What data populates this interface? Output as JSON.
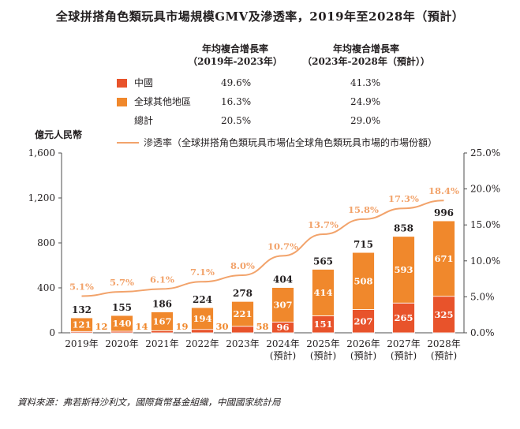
{
  "chart_data": {
    "type": "bar",
    "title": "全球拼搭角色類玩具市場規模GMV及滲透率，2019年至2028年（預計）",
    "ylabel": "億元人民幣",
    "ylim": [
      0,
      1600
    ],
    "yticks": [
      "0",
      "400",
      "800",
      "1,200",
      "1,600"
    ],
    "ytick_values": [
      0,
      400,
      800,
      1200,
      1600
    ],
    "y2lim": [
      0,
      25
    ],
    "y2ticks": [
      "0.0%",
      "5.0%",
      "10.0%",
      "15.0%",
      "20.0%",
      "25.0%"
    ],
    "y2tick_values": [
      0,
      5,
      10,
      15,
      20,
      25
    ],
    "categories": [
      "2019年",
      "2020年",
      "2021年",
      "2022年",
      "2023年",
      "2024年",
      "2025年",
      "2026年",
      "2027年",
      "2028年"
    ],
    "category_sub": [
      "",
      "",
      "",
      "",
      "",
      "(預計)",
      "(預計)",
      "(預計)",
      "(預計)",
      "(預計)"
    ],
    "series": [
      {
        "name": "中國",
        "color": "#e8532b",
        "values": [
          12,
          14,
          19,
          30,
          58,
          96,
          151,
          207,
          265,
          325
        ]
      },
      {
        "name": "全球其他地區",
        "color": "#f0882c",
        "values": [
          121,
          140,
          167,
          194,
          221,
          307,
          414,
          508,
          593,
          671
        ]
      }
    ],
    "totals": [
      132,
      155,
      186,
      224,
      278,
      404,
      565,
      715,
      858,
      996
    ],
    "line": {
      "name": "滲透率（全球拼搭角色類玩具市場佔全球角色類玩具市場的市場份額）",
      "color": "#f2a36b",
      "values": [
        5.1,
        5.7,
        6.1,
        7.1,
        8.0,
        10.7,
        13.7,
        15.8,
        17.3,
        18.4
      ],
      "labels": [
        "5.1%",
        "5.7%",
        "6.1%",
        "7.1%",
        "8.0%",
        "10.7%",
        "13.7%",
        "15.8%",
        "17.3%",
        "18.4%"
      ]
    },
    "cagr": {
      "header1": [
        "年均複合增長率",
        "（2019年-2023年）"
      ],
      "header2": [
        "年均複合增長率",
        "（2023年-2028年（預計））"
      ],
      "rows": [
        {
          "label": "中國",
          "v1": "49.6%",
          "v2": "41.3%"
        },
        {
          "label": "全球其他地區",
          "v1": "16.3%",
          "v2": "24.9%"
        },
        {
          "label": "總計",
          "v1": "20.5%",
          "v2": "29.0%"
        }
      ]
    },
    "legend": "top"
  },
  "source": "資料來源：弗若斯特沙利文，國際貨幣基金組織，中國國家統計局"
}
